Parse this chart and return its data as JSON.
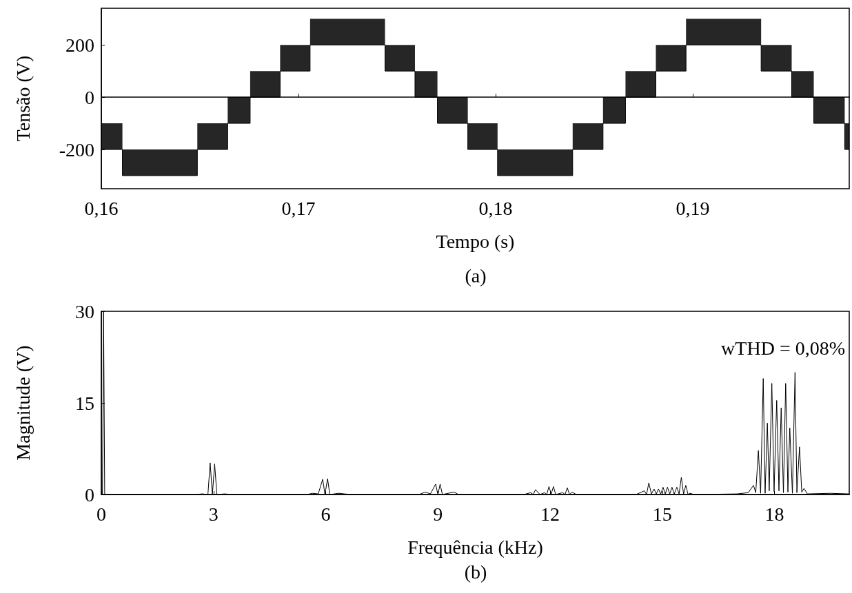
{
  "chart_data": [
    {
      "type": "step",
      "xlabel": "Tempo (s)",
      "ylabel": "Tensão (V)",
      "annotations": [
        "(a)"
      ],
      "marker": "none",
      "x": [
        0.16,
        0.16107,
        0.16487,
        0.16641,
        0.16755,
        0.16907,
        0.17059,
        0.17439,
        0.17591,
        0.17705,
        0.17859,
        0.1801,
        0.18391,
        0.18545,
        0.18659,
        0.18813,
        0.18966,
        0.19347,
        0.19502,
        0.19614,
        0.19771,
        0.19794
      ],
      "series": [
        {
          "color": "#000000",
          "values": [
            -200,
            -300,
            -200,
            -100,
            0,
            100,
            200,
            100,
            0,
            -100,
            -200,
            -300,
            -200,
            -100,
            0,
            100,
            200,
            100,
            0,
            -100,
            -200,
            -200
          ],
          "lower": [
            -200,
            -300,
            -200,
            -100,
            0,
            100,
            200,
            100,
            0,
            -100,
            -200,
            -300,
            -200,
            -100,
            0,
            100,
            200,
            100,
            0,
            -100,
            -200,
            -200
          ],
          "upper": [
            -100,
            -200,
            -100,
            0,
            100,
            200,
            300,
            200,
            100,
            0,
            -100,
            -200,
            -100,
            0,
            100,
            200,
            300,
            200,
            100,
            0,
            -100,
            -100
          ]
        }
      ],
      "xlim": [
        0.16,
        0.19794
      ],
      "ylim": [
        -350,
        340
      ],
      "xticks": [
        {
          "value": 0.16,
          "label": "0,16"
        },
        {
          "value": 0.17,
          "label": "0,17"
        },
        {
          "value": 0.18,
          "label": "0,18"
        },
        {
          "value": 0.19,
          "label": "0,19"
        }
      ],
      "yticks": [
        -200,
        0,
        200
      ]
    },
    {
      "type": "line",
      "xlabel": "Frequência (kHz)",
      "ylabel": "Magnitude (V)",
      "annotations": [
        "wTHD = 0,08%",
        "(b)"
      ],
      "marker": "none",
      "x": [
        0,
        0.03,
        0.06,
        0.09,
        2.5,
        2.7,
        2.85,
        2.91,
        2.97,
        3.03,
        3.09,
        3.3,
        3.5,
        5.5,
        5.65,
        5.8,
        5.92,
        5.98,
        6.05,
        6.11,
        6.35,
        6.5,
        6.7,
        8.5,
        8.66,
        8.8,
        8.94,
        9.0,
        9.06,
        9.12,
        9.43,
        9.55,
        11.3,
        11.48,
        11.55,
        11.61,
        11.73,
        11.85,
        11.91,
        11.97,
        12.03,
        12.09,
        12.15,
        12.34,
        12.4,
        12.46,
        12.52,
        12.59,
        12.7,
        14.3,
        14.52,
        14.58,
        14.64,
        14.71,
        14.78,
        14.84,
        14.9,
        14.96,
        15.02,
        15.08,
        15.14,
        15.2,
        15.26,
        15.32,
        15.39,
        15.45,
        15.51,
        15.57,
        15.63,
        15.69,
        15.74,
        15.85,
        17.0,
        17.3,
        17.44,
        17.5,
        17.57,
        17.63,
        17.7,
        17.75,
        17.81,
        17.86,
        17.93,
        17.99,
        18.06,
        18.12,
        18.18,
        18.24,
        18.3,
        18.36,
        18.41,
        18.48,
        18.55,
        18.6,
        18.67,
        18.73,
        18.79,
        18.88,
        19.5,
        20
      ],
      "series": [
        {
          "color": "#000000",
          "values": [
            0,
            0,
            30,
            0,
            0,
            0.1,
            0,
            5.2,
            0,
            5.0,
            0,
            0.1,
            0,
            0,
            0.2,
            0.1,
            2.5,
            0,
            2.6,
            0,
            0.2,
            0.1,
            0,
            0,
            0.4,
            0.1,
            1.7,
            0,
            1.7,
            0,
            0.4,
            0,
            0,
            0.3,
            0,
            0.8,
            0,
            0.3,
            0,
            1.3,
            0.1,
            1.3,
            0,
            0.3,
            0,
            1.1,
            0,
            0.4,
            0,
            0,
            0.6,
            0,
            1.9,
            0.1,
            0.9,
            0.1,
            0.9,
            0.1,
            1.2,
            0.1,
            1.2,
            0.1,
            1.2,
            0.1,
            1.2,
            0.1,
            2.8,
            0.1,
            1.5,
            0,
            0.2,
            0,
            0.1,
            0.3,
            1.5,
            0.3,
            7.2,
            0.2,
            19.0,
            0.2,
            11.7,
            0.6,
            18.2,
            0.5,
            15.4,
            0.6,
            14.2,
            0.3,
            18.2,
            0.4,
            10.9,
            0.2,
            20.0,
            0.3,
            7.8,
            0.4,
            1.0,
            0.1,
            0.2,
            0.1
          ]
        }
      ],
      "xlim": [
        0,
        20
      ],
      "ylim": [
        0,
        30
      ],
      "xticks": [
        0,
        3,
        6,
        9,
        12,
        15,
        18
      ],
      "yticks": [
        0,
        15,
        30
      ]
    }
  ]
}
